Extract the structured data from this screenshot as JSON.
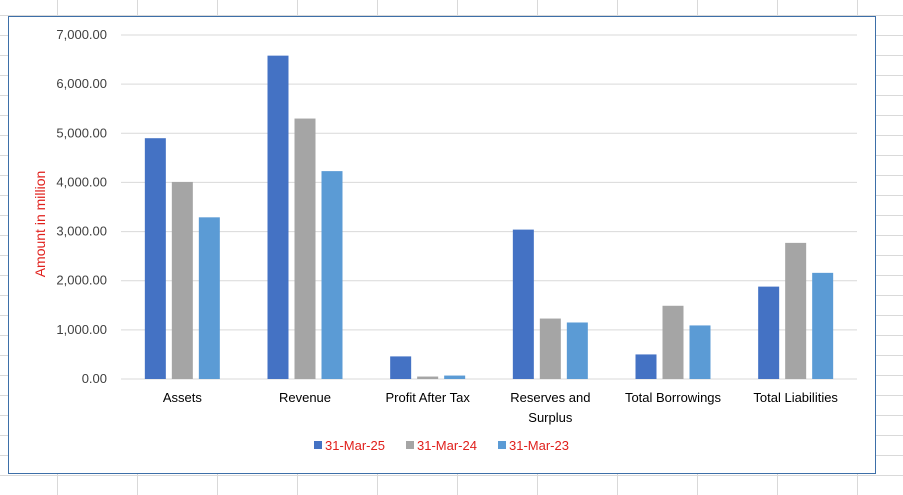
{
  "chart_data": {
    "type": "bar",
    "categories": [
      [
        "Assets"
      ],
      [
        "Revenue"
      ],
      [
        "Profit After Tax"
      ],
      [
        "Reserves and",
        "Surplus"
      ],
      [
        "Total Borrowings"
      ],
      [
        "Total Liabilities"
      ]
    ],
    "series": [
      {
        "name": "31-Mar-25",
        "color": "#4472c4",
        "values": [
          4900,
          6580,
          460,
          3040,
          500,
          1880
        ]
      },
      {
        "name": "31-Mar-24",
        "color": "#a5a5a5",
        "values": [
          4010,
          5300,
          50,
          1230,
          1490,
          2770
        ]
      },
      {
        "name": "31-Mar-23",
        "color": "#5b9bd5",
        "values": [
          3290,
          4230,
          70,
          1150,
          1090,
          2160
        ]
      }
    ],
    "ylabel": "Amount in million",
    "ylim": [
      0,
      7000
    ],
    "yticks": [
      "0.00",
      "1,000.00",
      "2,000.00",
      "3,000.00",
      "4,000.00",
      "5,000.00",
      "6,000.00",
      "7,000.00"
    ],
    "ytick_values": [
      0,
      1000,
      2000,
      3000,
      4000,
      5000,
      6000,
      7000
    ],
    "grid": true,
    "legend_position": "bottom"
  }
}
